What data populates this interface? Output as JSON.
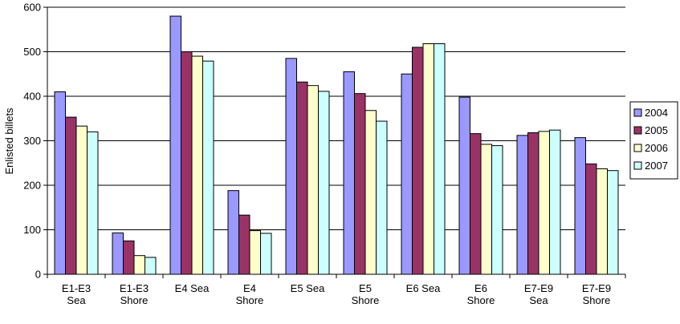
{
  "chart_data": {
    "type": "bar",
    "title": "",
    "xlabel": "",
    "ylabel": "Enlisted billets",
    "ylim": [
      0,
      600
    ],
    "yticks": [
      0,
      100,
      200,
      300,
      400,
      500,
      600
    ],
    "grid": true,
    "legend_position": "right",
    "categories": [
      [
        "E1-E3",
        "Sea"
      ],
      [
        "E1-E3",
        "Shore"
      ],
      [
        "E4 Sea"
      ],
      [
        "E4",
        "Shore"
      ],
      [
        "E5 Sea"
      ],
      [
        "E5",
        "Shore"
      ],
      [
        "E6 Sea"
      ],
      [
        "E6",
        "Shore"
      ],
      [
        "E7-E9",
        "Sea"
      ],
      [
        "E7-E9",
        "Shore"
      ]
    ],
    "series": [
      {
        "name": "2004",
        "color": "#9999ff",
        "values": [
          410,
          93,
          580,
          188,
          485,
          455,
          450,
          398,
          312,
          307
        ]
      },
      {
        "name": "2005",
        "color": "#993366",
        "values": [
          353,
          75,
          500,
          133,
          432,
          406,
          510,
          316,
          318,
          248
        ]
      },
      {
        "name": "2006",
        "color": "#ffffcc",
        "values": [
          333,
          42,
          490,
          98,
          424,
          368,
          518,
          292,
          321,
          237
        ]
      },
      {
        "name": "2007",
        "color": "#ccffff",
        "values": [
          320,
          38,
          479,
          92,
          411,
          344,
          518,
          289,
          324,
          233
        ]
      }
    ]
  }
}
